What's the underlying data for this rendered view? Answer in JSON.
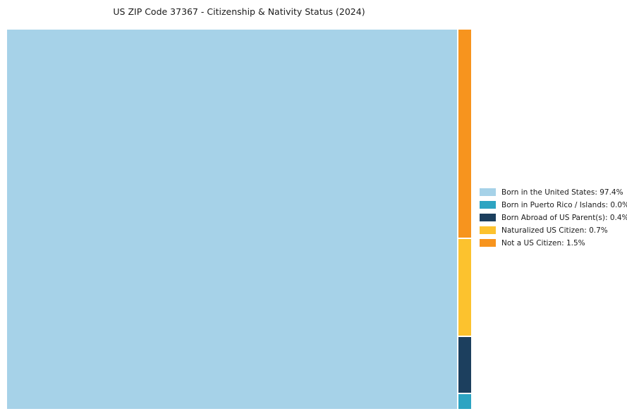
{
  "page": {
    "title": "US ZIP Code 37367 - Citizenship & Nativity Status (2024)"
  },
  "chart_data": {
    "type": "treemap",
    "title": "US ZIP Code 37367 - Citizenship & Nativity Status (2024)",
    "categories": [
      "Born in the United States",
      "Born in Puerto Rico / Islands",
      "Born Abroad of US Parent(s)",
      "Naturalized US Citizen",
      "Not a US Citizen"
    ],
    "values": [
      97.4,
      0.0,
      0.4,
      0.7,
      1.5
    ],
    "unit": "%",
    "colors": [
      "#a6d2e8",
      "#2da4c2",
      "#1c3f5e",
      "#fcc22e",
      "#f7941e"
    ],
    "legend_position": "right",
    "layout_hint": "Large tile on left = Born in the United States; narrow stacked column on right, top to bottom: Not a US Citizen, Naturalized US Citizen, Born Abroad of US Parent(s), Born in Puerto Rico / Islands (minimal sliver)"
  },
  "legend": {
    "items": [
      {
        "label": "Born in the United States: 97.4%",
        "color": "#a6d2e8"
      },
      {
        "label": "Born in Puerto Rico / Islands: 0.0%",
        "color": "#2da4c2"
      },
      {
        "label": "Born Abroad of US Parent(s): 0.4%",
        "color": "#1c3f5e"
      },
      {
        "label": "Naturalized US Citizen: 0.7%",
        "color": "#fcc22e"
      },
      {
        "label": "Not a US Citizen: 1.5%",
        "color": "#f7941e"
      }
    ]
  }
}
